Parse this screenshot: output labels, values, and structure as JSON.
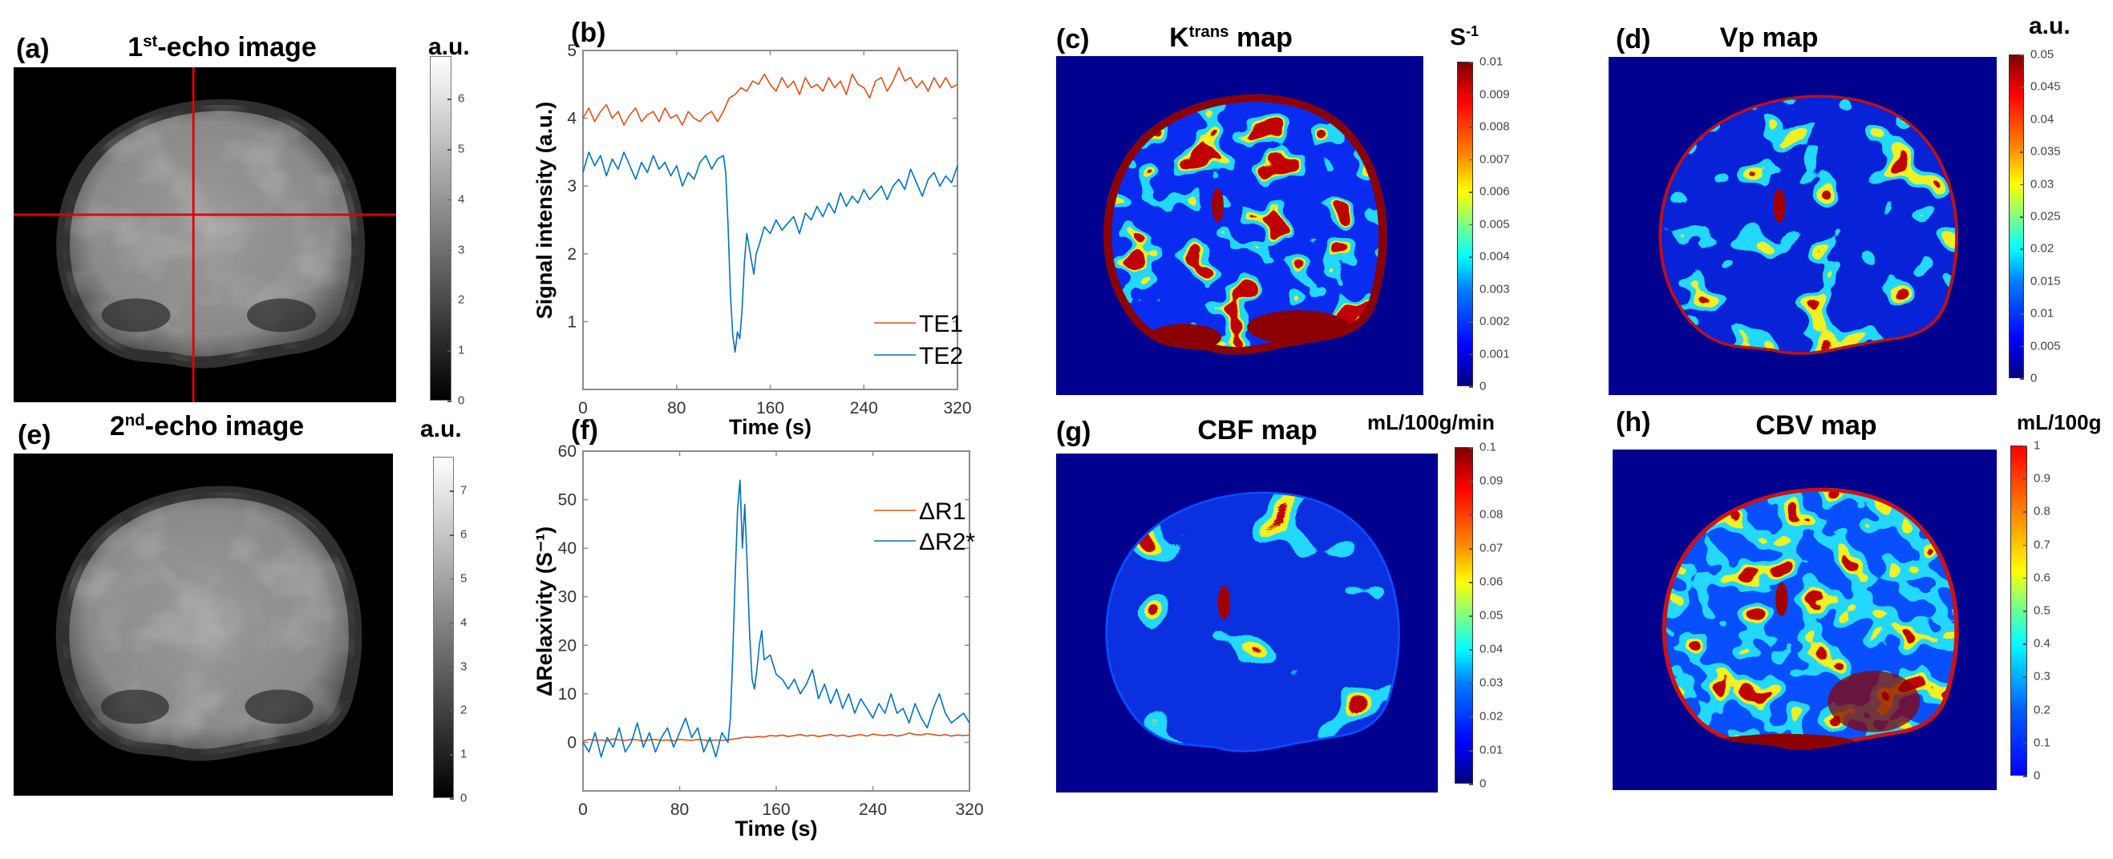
{
  "panels": {
    "a": {
      "label": "(a)",
      "title": {
        "pre": "1",
        "sup": "st",
        "post": "-echo image"
      },
      "unit": {
        "pre": "a.u.",
        "sup": ""
      },
      "colormap": "gray",
      "crosshair_color": "#e00000",
      "colorbar": {
        "min": 0,
        "max": 6.85,
        "ticks": [
          {
            "v": 0,
            "t": "0"
          },
          {
            "v": 1,
            "t": "1"
          },
          {
            "v": 2,
            "t": "2"
          },
          {
            "v": 3,
            "t": "3"
          },
          {
            "v": 4,
            "t": "4"
          },
          {
            "v": 5,
            "t": "5"
          },
          {
            "v": 6,
            "t": "6"
          }
        ]
      }
    },
    "e": {
      "label": "(e)",
      "title": {
        "pre": "2",
        "sup": "nd",
        "post": "-echo image"
      },
      "unit": {
        "pre": "a.u.",
        "sup": ""
      },
      "colormap": "gray",
      "colorbar": {
        "min": 0,
        "max": 7.77,
        "ticks": [
          {
            "v": 0,
            "t": "0"
          },
          {
            "v": 1,
            "t": "1"
          },
          {
            "v": 2,
            "t": "2"
          },
          {
            "v": 3,
            "t": "3"
          },
          {
            "v": 4,
            "t": "4"
          },
          {
            "v": 5,
            "t": "5"
          },
          {
            "v": 6,
            "t": "6"
          },
          {
            "v": 7,
            "t": "7"
          }
        ]
      }
    },
    "c": {
      "label": "(c)",
      "title": {
        "pre": "K",
        "sup": "trans",
        "post": " map"
      },
      "unit": {
        "pre": "S",
        "sup": "-1"
      },
      "colormap": "jet",
      "colorbar": {
        "min": 0,
        "max": 0.01,
        "ticks": [
          {
            "v": 0,
            "t": "0"
          },
          {
            "v": 0.001,
            "t": "0.001"
          },
          {
            "v": 0.002,
            "t": "0.002"
          },
          {
            "v": 0.003,
            "t": "0.003"
          },
          {
            "v": 0.004,
            "t": "0.004"
          },
          {
            "v": 0.005,
            "t": "0.005"
          },
          {
            "v": 0.006,
            "t": "0.006"
          },
          {
            "v": 0.007,
            "t": "0.007"
          },
          {
            "v": 0.008,
            "t": "0.008"
          },
          {
            "v": 0.009,
            "t": "0.009"
          },
          {
            "v": 0.01,
            "t": "0.01"
          }
        ]
      }
    },
    "d": {
      "label": "(d)",
      "title": {
        "pre": "Vp map",
        "sup": "",
        "post": ""
      },
      "unit": {
        "pre": "a.u.",
        "sup": ""
      },
      "colormap": "jet",
      "colorbar": {
        "min": 0,
        "max": 0.05,
        "ticks": [
          {
            "v": 0,
            "t": "0"
          },
          {
            "v": 0.005,
            "t": "0.005"
          },
          {
            "v": 0.01,
            "t": "0.01"
          },
          {
            "v": 0.015,
            "t": "0.015"
          },
          {
            "v": 0.02,
            "t": "0.02"
          },
          {
            "v": 0.025,
            "t": "0.025"
          },
          {
            "v": 0.03,
            "t": "0.03"
          },
          {
            "v": 0.035,
            "t": "0.035"
          },
          {
            "v": 0.04,
            "t": "0.04"
          },
          {
            "v": 0.045,
            "t": "0.045"
          },
          {
            "v": 0.05,
            "t": "0.05"
          }
        ]
      }
    },
    "g": {
      "label": "(g)",
      "title": {
        "pre": "CBF map",
        "sup": "",
        "post": ""
      },
      "unit": {
        "pre": "mL/100g/min",
        "sup": ""
      },
      "colormap": "jet",
      "colorbar": {
        "min": 0,
        "max": 0.1,
        "ticks": [
          {
            "v": 0,
            "t": "0"
          },
          {
            "v": 0.01,
            "t": "0.01"
          },
          {
            "v": 0.02,
            "t": "0.02"
          },
          {
            "v": 0.03,
            "t": "0.03"
          },
          {
            "v": 0.04,
            "t": "0.04"
          },
          {
            "v": 0.05,
            "t": "0.05"
          },
          {
            "v": 0.06,
            "t": "0.06"
          },
          {
            "v": 0.07,
            "t": "0.07"
          },
          {
            "v": 0.08,
            "t": "0.08"
          },
          {
            "v": 0.09,
            "t": "0.09"
          },
          {
            "v": 0.1,
            "t": "0.1"
          }
        ]
      }
    },
    "h": {
      "label": "(h)",
      "title": {
        "pre": "CBV map",
        "sup": "",
        "post": ""
      },
      "unit": {
        "pre": "mL/100g",
        "sup": ""
      },
      "colormap": "jet",
      "colorbar": {
        "min": 0,
        "max": 1,
        "ticks": [
          {
            "v": 0,
            "t": "0"
          },
          {
            "v": 0.1,
            "t": "0.1"
          },
          {
            "v": 0.2,
            "t": "0.2"
          },
          {
            "v": 0.3,
            "t": "0.3"
          },
          {
            "v": 0.4,
            "t": "0.4"
          },
          {
            "v": 0.5,
            "t": "0.5"
          },
          {
            "v": 0.6,
            "t": "0.6"
          },
          {
            "v": 0.7,
            "t": "0.7"
          },
          {
            "v": 0.8,
            "t": "0.8"
          },
          {
            "v": 0.9,
            "t": "0.9"
          },
          {
            "v": 1,
            "t": "1"
          }
        ]
      }
    }
  },
  "chart_data": [
    {
      "type": "line",
      "label": "(b)",
      "xlabel": "Time (s)",
      "ylabel": "Signal intensity (a.u.)",
      "xlim": [
        0,
        320
      ],
      "ylim": [
        0,
        5
      ],
      "x_ticks": [
        "0",
        "80",
        "160",
        "240",
        "320"
      ],
      "y_ticks": [
        "1",
        "2",
        "3",
        "4",
        "5"
      ],
      "grid": false,
      "legend_position": "bottom-right",
      "series": [
        {
          "name": "TE1",
          "color": "#d95319",
          "x": [
            0,
            5,
            10,
            15,
            20,
            25,
            30,
            35,
            40,
            45,
            50,
            55,
            60,
            65,
            70,
            75,
            80,
            85,
            90,
            95,
            100,
            105,
            110,
            115,
            120,
            125,
            130,
            135,
            140,
            145,
            150,
            155,
            160,
            165,
            170,
            175,
            180,
            185,
            190,
            195,
            200,
            205,
            210,
            215,
            220,
            225,
            230,
            235,
            240,
            245,
            250,
            255,
            260,
            265,
            270,
            275,
            280,
            285,
            290,
            295,
            300,
            305,
            310,
            315,
            320
          ],
          "y": [
            4.0,
            4.15,
            3.95,
            4.1,
            4.2,
            4.0,
            4.1,
            3.9,
            4.05,
            4.15,
            3.95,
            4.05,
            4.1,
            3.95,
            4.15,
            4.0,
            4.05,
            3.9,
            4.1,
            4.0,
            3.95,
            4.05,
            4.1,
            3.95,
            4.1,
            4.3,
            4.35,
            4.45,
            4.4,
            4.55,
            4.5,
            4.65,
            4.5,
            4.4,
            4.6,
            4.45,
            4.55,
            4.35,
            4.6,
            4.45,
            4.5,
            4.4,
            4.6,
            4.45,
            4.55,
            4.35,
            4.65,
            4.5,
            4.45,
            4.3,
            4.55,
            4.6,
            4.4,
            4.55,
            4.75,
            4.55,
            4.6,
            4.45,
            4.55,
            4.4,
            4.6,
            4.45,
            4.6,
            4.45,
            4.5
          ]
        },
        {
          "name": "TE2",
          "color": "#0072bd",
          "x": [
            0,
            5,
            10,
            15,
            20,
            25,
            30,
            35,
            40,
            45,
            50,
            55,
            60,
            65,
            70,
            75,
            80,
            85,
            90,
            95,
            100,
            105,
            110,
            115,
            120,
            122,
            124,
            126,
            128,
            130,
            132,
            134,
            136,
            138,
            140,
            142,
            144,
            146,
            148,
            150,
            155,
            160,
            165,
            170,
            175,
            180,
            185,
            190,
            195,
            200,
            205,
            210,
            215,
            220,
            225,
            230,
            235,
            240,
            245,
            250,
            255,
            260,
            265,
            270,
            275,
            280,
            285,
            290,
            295,
            300,
            305,
            310,
            315,
            320
          ],
          "y": [
            3.2,
            3.5,
            3.3,
            3.45,
            3.15,
            3.4,
            3.25,
            3.5,
            3.3,
            3.1,
            3.35,
            3.2,
            3.45,
            3.25,
            3.35,
            3.15,
            3.3,
            3.0,
            3.2,
            3.1,
            3.35,
            3.45,
            3.25,
            3.4,
            3.45,
            3.2,
            2.4,
            1.4,
            0.8,
            0.55,
            0.85,
            0.75,
            1.2,
            1.9,
            2.3,
            2.1,
            1.9,
            1.7,
            2.0,
            2.1,
            2.4,
            2.3,
            2.5,
            2.35,
            2.45,
            2.55,
            2.3,
            2.6,
            2.5,
            2.7,
            2.55,
            2.75,
            2.6,
            2.9,
            2.7,
            2.85,
            2.75,
            2.95,
            2.8,
            2.9,
            3.0,
            2.8,
            3.0,
            3.1,
            2.95,
            3.25,
            3.05,
            2.85,
            3.1,
            3.2,
            3.0,
            3.15,
            3.05,
            3.3
          ]
        }
      ]
    },
    {
      "type": "line",
      "label": "(f)",
      "xlabel": "Time (s)",
      "ylabel": "ΔRelaxivity (S⁻¹)",
      "xlim": [
        0,
        320
      ],
      "ylim": [
        -10,
        60
      ],
      "x_ticks": [
        "0",
        "80",
        "160",
        "240",
        "320"
      ],
      "y_ticks": [
        "0",
        "10",
        "20",
        "30",
        "40",
        "50",
        "60"
      ],
      "grid": false,
      "legend_position": "top-right",
      "series": [
        {
          "name": "ΔR1",
          "color": "#d95319",
          "x": [
            0,
            5,
            10,
            15,
            20,
            25,
            30,
            35,
            40,
            45,
            50,
            55,
            60,
            65,
            70,
            75,
            80,
            85,
            90,
            95,
            100,
            105,
            110,
            115,
            120,
            125,
            130,
            135,
            140,
            145,
            150,
            155,
            160,
            165,
            170,
            175,
            180,
            185,
            190,
            195,
            200,
            205,
            210,
            215,
            220,
            225,
            230,
            235,
            240,
            245,
            250,
            255,
            260,
            265,
            270,
            275,
            280,
            285,
            290,
            295,
            300,
            305,
            310,
            315,
            320
          ],
          "y": [
            0.3,
            0.6,
            0.4,
            0.5,
            0.3,
            0.7,
            0.5,
            0.4,
            0.6,
            0.5,
            0.3,
            0.5,
            0.6,
            0.4,
            0.5,
            0.3,
            0.6,
            0.5,
            0.4,
            0.6,
            0.5,
            0.3,
            0.5,
            0.4,
            0.5,
            0.7,
            0.9,
            1.1,
            1.0,
            1.2,
            1.1,
            1.4,
            1.3,
            1.5,
            1.2,
            1.4,
            1.6,
            1.3,
            1.5,
            1.2,
            1.4,
            1.6,
            1.3,
            1.5,
            1.2,
            1.4,
            1.6,
            1.3,
            1.7,
            1.5,
            1.4,
            1.6,
            1.3,
            1.5,
            1.9,
            1.6,
            1.5,
            1.8,
            1.6,
            1.4,
            1.6,
            1.3,
            1.5,
            1.4,
            1.5
          ]
        },
        {
          "name": "ΔR2*",
          "color": "#0072bd",
          "x": [
            0,
            5,
            10,
            15,
            20,
            25,
            30,
            35,
            40,
            45,
            50,
            55,
            60,
            65,
            70,
            75,
            80,
            85,
            90,
            95,
            100,
            105,
            110,
            115,
            120,
            122,
            124,
            126,
            128,
            130,
            132,
            134,
            136,
            138,
            140,
            142,
            144,
            146,
            148,
            150,
            155,
            160,
            165,
            170,
            175,
            180,
            185,
            190,
            195,
            200,
            205,
            210,
            215,
            220,
            225,
            230,
            235,
            240,
            245,
            250,
            255,
            260,
            265,
            270,
            275,
            280,
            285,
            290,
            295,
            300,
            305,
            310,
            315,
            320
          ],
          "y": [
            0,
            -2,
            2,
            -3,
            1,
            -1,
            3,
            -2,
            0,
            4,
            -1,
            2,
            -2,
            1,
            3,
            -1,
            2,
            5,
            1,
            3,
            -2,
            1,
            -3,
            2,
            0,
            5,
            18,
            34,
            48,
            54,
            40,
            49,
            36,
            22,
            13,
            11,
            15,
            20,
            23,
            17,
            18,
            14,
            13,
            11,
            13,
            10,
            12,
            15,
            9,
            12,
            8,
            11,
            7,
            10,
            6,
            9,
            7,
            5,
            8,
            6,
            10,
            6,
            7,
            4,
            8,
            5,
            3,
            7,
            10,
            6,
            4,
            5,
            6,
            4
          ]
        }
      ]
    }
  ]
}
